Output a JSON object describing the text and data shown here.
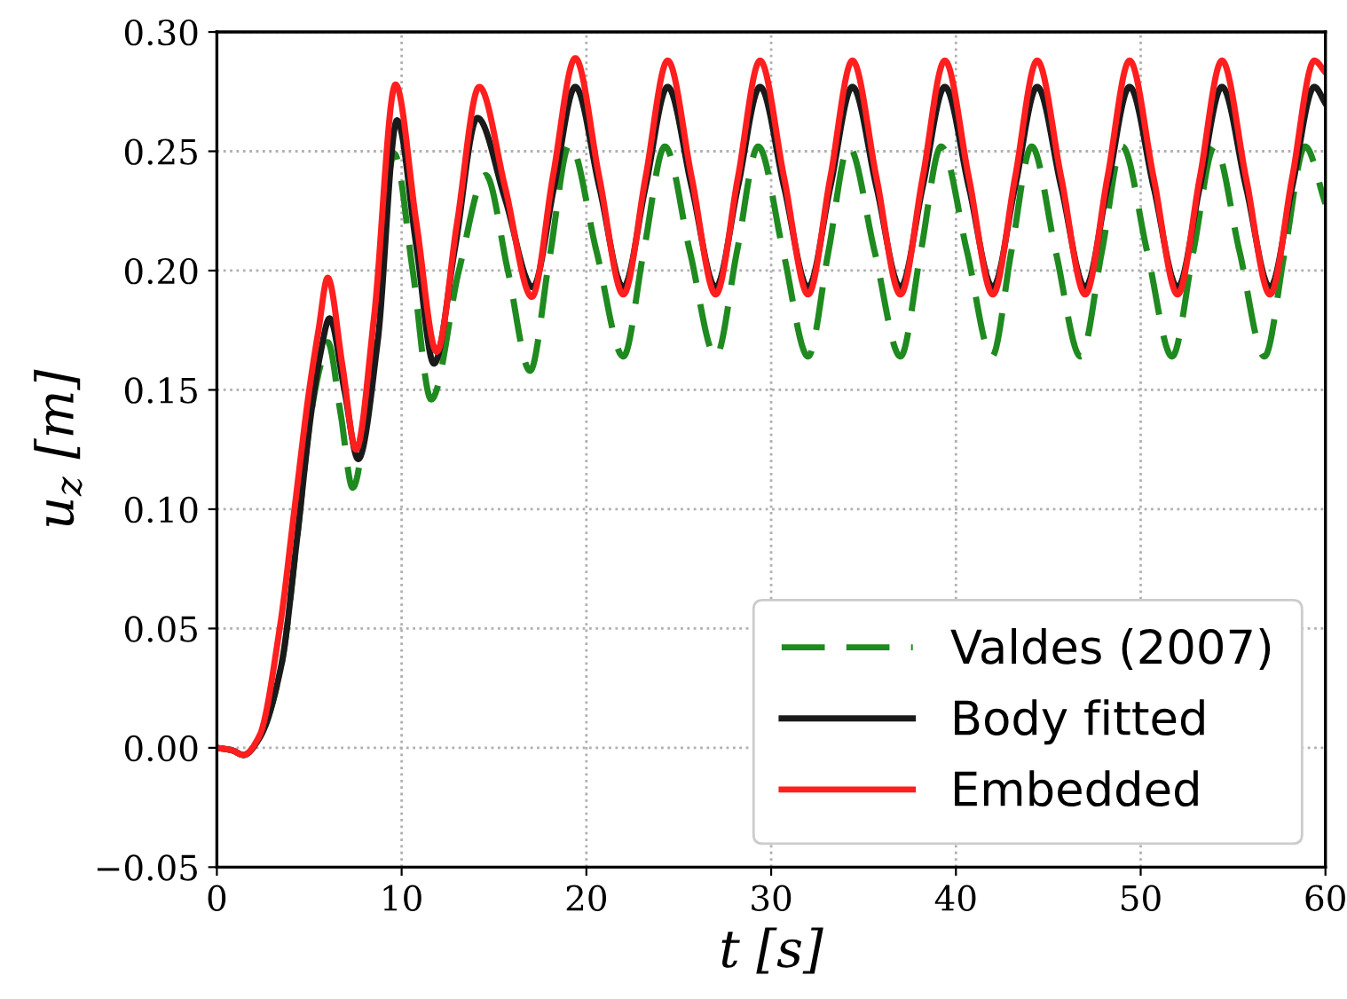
{
  "chart_data": {
    "type": "line",
    "xlabel": "t [s]",
    "ylabel": "u$_{z}$ [m]",
    "xlim": [
      0,
      60
    ],
    "xticks": [
      0,
      10,
      20,
      30,
      40,
      50,
      60
    ],
    "ylim": [
      -0.05,
      0.3
    ],
    "yticks": [
      {
        "value": -0.05,
        "label": "−0.05"
      },
      {
        "value": 0.0,
        "label": "0.00"
      },
      {
        "value": 0.05,
        "label": "0.05"
      },
      {
        "value": 0.1,
        "label": "0.10"
      },
      {
        "value": 0.15,
        "label": "0.15"
      },
      {
        "value": 0.2,
        "label": "0.20"
      },
      {
        "value": 0.25,
        "label": "0.25"
      },
      {
        "value": 0.3,
        "label": "0.30"
      }
    ],
    "grid": true,
    "legend": "bottom right",
    "marker": "none",
    "series": [
      {
        "name": "Valdes (2007)",
        "color": "#1f8a1f",
        "line_style": "dashed",
        "x": [
          0,
          0.8,
          1.45,
          2.3,
          3.5,
          4.3,
          5.1,
          5.6,
          6.0,
          6.7,
          7.35,
          8.5,
          9.6,
          10.6,
          11.6,
          13.1,
          14.55,
          15.75,
          16.95,
          18.0,
          19.1,
          20.55,
          22.0,
          23.1,
          24.25,
          25.6,
          27.0,
          28.15,
          29.3,
          30.65,
          32.0,
          33.1,
          34.2,
          35.6,
          37.0,
          38.1,
          39.2,
          40.6,
          41.95,
          43.0,
          44.1,
          45.4,
          46.75,
          47.9,
          49.0,
          50.35,
          51.7,
          52.85,
          54.0,
          55.35,
          56.7,
          57.8,
          58.9,
          60
        ],
        "values": [
          0,
          -0.001,
          -0.003,
          0.004,
          0.035,
          0.085,
          0.14,
          0.16,
          0.17,
          0.14,
          0.109,
          0.17,
          0.249,
          0.2,
          0.146,
          0.2,
          0.24,
          0.2,
          0.158,
          0.205,
          0.253,
          0.208,
          0.164,
          0.208,
          0.252,
          0.208,
          0.164,
          0.208,
          0.252,
          0.208,
          0.164,
          0.208,
          0.252,
          0.208,
          0.164,
          0.208,
          0.252,
          0.208,
          0.164,
          0.208,
          0.252,
          0.208,
          0.164,
          0.208,
          0.252,
          0.208,
          0.164,
          0.208,
          0.252,
          0.208,
          0.164,
          0.208,
          0.252,
          0.228
        ]
      },
      {
        "name": "Body fitted",
        "color": "#1a1a1a",
        "line_style": "solid",
        "x": [
          0,
          0.8,
          1.45,
          2.3,
          3.5,
          4.3,
          5.1,
          5.6,
          6.1,
          6.9,
          7.65,
          8.7,
          9.75,
          10.8,
          11.75,
          12.9,
          14.1,
          15.6,
          17.1,
          18.25,
          19.4,
          20.7,
          22,
          23.2,
          24.4,
          25.7,
          27,
          28.2,
          29.4,
          30.7,
          32,
          33.2,
          34.4,
          35.7,
          37,
          38.2,
          39.4,
          40.7,
          42,
          43.2,
          44.4,
          45.7,
          47,
          48.2,
          49.4,
          50.7,
          52,
          53.2,
          54.4,
          55.7,
          57,
          58.2,
          59.4,
          60
        ],
        "values": [
          0,
          -0.001,
          -0.003,
          0.004,
          0.035,
          0.085,
          0.14,
          0.165,
          0.18,
          0.15,
          0.121,
          0.17,
          0.263,
          0.21,
          0.161,
          0.21,
          0.264,
          0.23,
          0.193,
          0.235,
          0.277,
          0.235,
          0.193,
          0.235,
          0.277,
          0.235,
          0.193,
          0.235,
          0.277,
          0.235,
          0.193,
          0.235,
          0.277,
          0.235,
          0.193,
          0.235,
          0.277,
          0.235,
          0.193,
          0.235,
          0.277,
          0.235,
          0.193,
          0.235,
          0.277,
          0.235,
          0.193,
          0.235,
          0.277,
          0.235,
          0.193,
          0.235,
          0.277,
          0.27
        ]
      },
      {
        "name": "Embedded",
        "color": "#ff1f1f",
        "line_style": "solid",
        "x": [
          0,
          0.8,
          1.45,
          2.3,
          3.4,
          4.2,
          5.0,
          5.5,
          6.0,
          6.8,
          7.53,
          8.5,
          9.67,
          10.8,
          11.9,
          13.0,
          14.2,
          15.6,
          17.05,
          18.2,
          19.4,
          20.7,
          22,
          23.2,
          24.4,
          25.7,
          27,
          28.2,
          29.4,
          30.7,
          32,
          33.2,
          34.4,
          35.7,
          37,
          38.2,
          39.4,
          40.7,
          42,
          43.2,
          44.4,
          45.7,
          47,
          48.2,
          49.4,
          50.7,
          52,
          53.2,
          54.4,
          55.7,
          57,
          58.2,
          59.4,
          60
        ],
        "values": [
          0,
          -0.001,
          -0.003,
          0.005,
          0.05,
          0.1,
          0.15,
          0.175,
          0.197,
          0.16,
          0.125,
          0.18,
          0.278,
          0.22,
          0.166,
          0.22,
          0.277,
          0.235,
          0.189,
          0.24,
          0.289,
          0.239,
          0.19,
          0.239,
          0.288,
          0.239,
          0.19,
          0.239,
          0.288,
          0.239,
          0.19,
          0.239,
          0.288,
          0.239,
          0.19,
          0.239,
          0.288,
          0.239,
          0.19,
          0.239,
          0.288,
          0.239,
          0.19,
          0.239,
          0.288,
          0.239,
          0.19,
          0.239,
          0.288,
          0.239,
          0.19,
          0.239,
          0.288,
          0.283
        ]
      }
    ]
  }
}
